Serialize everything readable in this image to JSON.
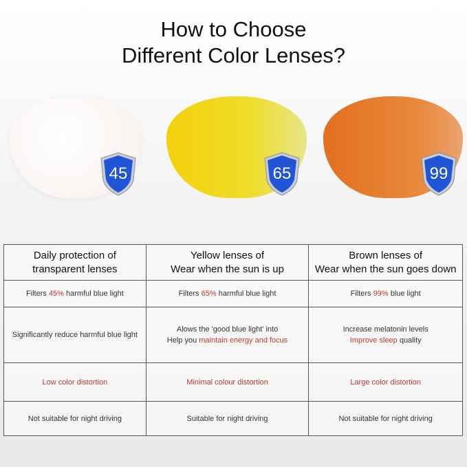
{
  "title": {
    "line1": "How to Choose",
    "line2": "Different Color Lenses?"
  },
  "lenses": [
    {
      "name": "transparent",
      "color": "#fbf7f5",
      "badge": "45"
    },
    {
      "name": "yellow",
      "color": "#f2d312",
      "badge": "65"
    },
    {
      "name": "brown",
      "color": "#e5782a",
      "badge": "99"
    }
  ],
  "badge_color": "#1f55d6",
  "accent_red": "#c0392b",
  "table": {
    "headers": [
      {
        "line1": "Daily protection of",
        "line2": "transparent lenses"
      },
      {
        "line1": "Yellow lenses of",
        "line2": "Wear when the sun is up"
      },
      {
        "line1": "Brown lenses of",
        "line2": "Wear when the sun goes down"
      }
    ],
    "filters": [
      {
        "pre": "Filters ",
        "hl": "45%",
        "post": " harmful blue light"
      },
      {
        "pre": "Filters ",
        "hl": "65%",
        "post": " harmful blue light"
      },
      {
        "pre": "Filters ",
        "hl": "99%",
        "post": " blue light"
      }
    ],
    "benefits": {
      "c1": "Significantly reduce harmful blue light",
      "c2_line1": "Alows the 'good blue light' into",
      "c2_pre": "Help you ",
      "c2_hl": "maintain energy and focus",
      "c3_line1": "Increase melatonin levels",
      "c3_hl": "Improve sleep",
      "c3_post": " quality"
    },
    "distortion": [
      "Low color distortion",
      "Minimal colour distortion",
      "Large color distortion"
    ],
    "night": [
      "Not suitable for night driving",
      "Suitable for night driving",
      "Not suitable for night driving"
    ]
  }
}
